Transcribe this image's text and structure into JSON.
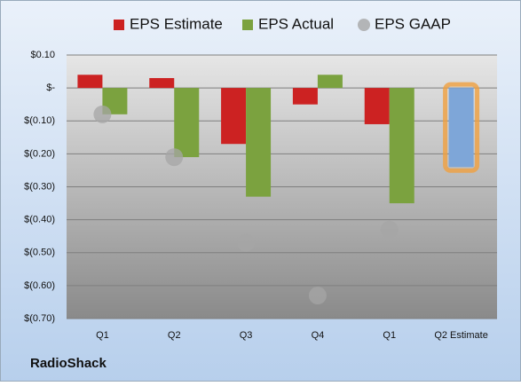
{
  "chart_data": {
    "type": "bar",
    "footer": "RadioShack",
    "categories": [
      "Q1",
      "Q2",
      "Q3",
      "Q4",
      "Q1",
      "Q2 Estimate"
    ],
    "series": [
      {
        "name": "EPS Estimate",
        "color": "#cc2222",
        "colors": [
          "#cc2222",
          "#cc2222",
          "#cc2222",
          "#cc2222",
          "#cc2222",
          "#7ea6d8"
        ],
        "values": [
          0.04,
          0.03,
          -0.17,
          -0.05,
          -0.11,
          -0.24
        ]
      },
      {
        "name": "EPS Actual",
        "color": "#7ba23f",
        "values": [
          -0.08,
          -0.21,
          -0.33,
          0.04,
          -0.35,
          null
        ]
      },
      {
        "name": "EPS GAAP",
        "color": "#a6a6a6",
        "mark": "circle",
        "values": [
          -0.08,
          -0.21,
          -0.47,
          -0.63,
          -0.43,
          null
        ]
      }
    ],
    "ylim": [
      -0.7,
      0.1
    ],
    "yticks": [
      {
        "value": 0.1,
        "label": "$0.10"
      },
      {
        "value": 0,
        "label": "$-"
      },
      {
        "value": -0.1,
        "label": "$(0.10)"
      },
      {
        "value": -0.2,
        "label": "$(0.20)"
      },
      {
        "value": -0.3,
        "label": "$(0.30)"
      },
      {
        "value": -0.4,
        "label": "$(0.40)"
      },
      {
        "value": -0.5,
        "label": "$(0.50)"
      },
      {
        "value": -0.6,
        "label": "$(0.60)"
      },
      {
        "value": -0.7,
        "label": "$(0.70)"
      }
    ],
    "grid": true
  }
}
